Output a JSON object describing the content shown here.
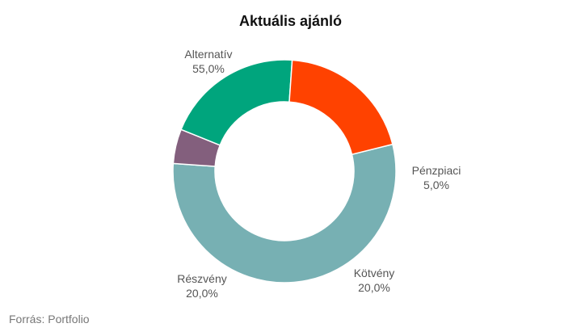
{
  "chart_data": {
    "type": "pie",
    "subtype": "donut",
    "title": "Aktuális ajánló",
    "slices": [
      {
        "label": "Alternatív",
        "value": 55.0,
        "value_label": "55,0%",
        "color": "#77b0b3"
      },
      {
        "label": "Pénzpiaci",
        "value": 5.0,
        "value_label": "5,0%",
        "color": "#835f7d"
      },
      {
        "label": "Kötvény",
        "value": 20.0,
        "value_label": "20,0%",
        "color": "#00a57d"
      },
      {
        "label": "Részvény",
        "value": 20.0,
        "value_label": "20,0%",
        "color": "#ff4200"
      }
    ],
    "legend": "none"
  },
  "source": "Forrás: Portfolio"
}
